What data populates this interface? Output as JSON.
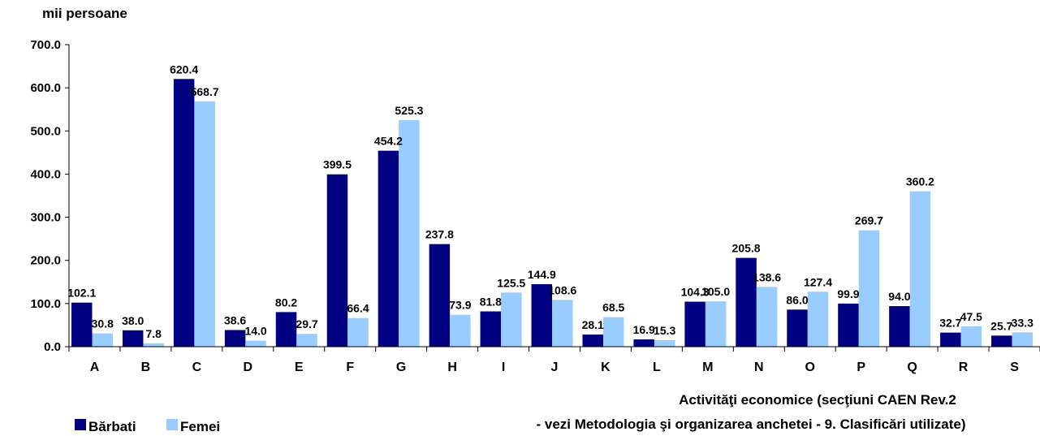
{
  "chart_data": {
    "type": "bar",
    "title": "",
    "ylabel": "mii persoane",
    "xlabel_line1": "Activităţi economice (secţiuni CAEN Rev.2",
    "xlabel_line2": "- vezi Metodologia şi organizarea anchetei - 9. Clasificări utilizate)",
    "ylim": [
      0,
      700
    ],
    "yticks": [
      "0.0",
      "100.0",
      "200.0",
      "300.0",
      "400.0",
      "500.0",
      "600.0",
      "700.0"
    ],
    "grid": false,
    "legend_position": "bottom-left",
    "categories": [
      "A",
      "B",
      "C",
      "D",
      "E",
      "F",
      "G",
      "H",
      "I",
      "J",
      "K",
      "L",
      "M",
      "N",
      "O",
      "P",
      "Q",
      "R",
      "S"
    ],
    "series": [
      {
        "name": "Bărbati",
        "color": "#000080",
        "values": [
          102.1,
          38.0,
          620.4,
          38.6,
          80.2,
          399.5,
          454.2,
          237.8,
          81.8,
          144.9,
          28.1,
          16.9,
          104.3,
          205.8,
          86.0,
          99.9,
          94.0,
          32.7,
          25.7
        ],
        "labels": [
          "102.1",
          "38.0",
          "620.4",
          "38.6",
          "80.2",
          "399.5",
          "454.2",
          "237.8",
          "81.8",
          "144.9",
          "28.1",
          "16.9",
          "104.3",
          "205.8",
          "86.0",
          "99.9",
          "94.0",
          "32.7",
          "25.7"
        ]
      },
      {
        "name": "Femei",
        "color": "#99CCFF",
        "values": [
          30.8,
          7.8,
          568.7,
          14.0,
          29.7,
          66.4,
          525.3,
          73.9,
          125.5,
          108.6,
          68.5,
          15.3,
          105.0,
          138.6,
          127.4,
          269.7,
          360.2,
          47.5,
          33.3
        ],
        "labels": [
          "30.8",
          "7.8",
          "568.7",
          "14.0",
          "29.7",
          "66.4",
          "525.3",
          "73.9",
          "125.5",
          "108.6",
          "68.5",
          "15.3",
          "105.0",
          "138.6",
          "127.4",
          "269.7",
          "360.2",
          "47.5",
          "33.3"
        ]
      }
    ]
  }
}
